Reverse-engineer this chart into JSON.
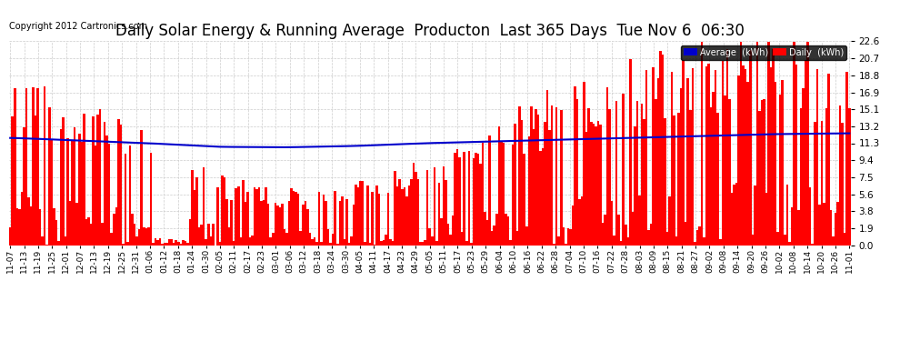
{
  "title": "Daily Solar Energy & Running Average  Producton  Last 365 Days  Tue Nov 6  06:30",
  "copyright": "Copyright 2012 Cartronics.com",
  "ylabel_right": [
    "22.6",
    "20.7",
    "18.8",
    "16.9",
    "15.1",
    "13.2",
    "11.3",
    "9.4",
    "7.5",
    "5.6",
    "3.8",
    "1.9",
    "0.0"
  ],
  "yticks": [
    22.6,
    20.7,
    18.8,
    16.9,
    15.1,
    13.2,
    11.3,
    9.4,
    7.5,
    5.6,
    3.8,
    1.9,
    0.0
  ],
  "bar_color": "#FF0000",
  "avg_line_color": "#0000CC",
  "background_color": "#FFFFFF",
  "grid_color": "#CCCCCC",
  "title_fontsize": 12,
  "xtick_labels": [
    "11-07",
    "11-13",
    "11-19",
    "11-25",
    "12-01",
    "12-07",
    "12-13",
    "12-19",
    "12-25",
    "12-31",
    "01-06",
    "01-12",
    "01-18",
    "01-24",
    "01-30",
    "02-05",
    "02-11",
    "02-17",
    "02-23",
    "03-01",
    "03-06",
    "03-12",
    "03-18",
    "03-24",
    "03-30",
    "04-05",
    "04-11",
    "04-17",
    "04-23",
    "04-29",
    "05-05",
    "05-11",
    "05-17",
    "05-23",
    "05-29",
    "06-04",
    "06-10",
    "06-16",
    "06-22",
    "06-28",
    "07-04",
    "07-10",
    "07-16",
    "07-22",
    "07-28",
    "08-03",
    "08-09",
    "08-15",
    "08-21",
    "08-27",
    "09-02",
    "09-08",
    "09-14",
    "09-20",
    "09-26",
    "10-02",
    "10-08",
    "10-14",
    "10-20",
    "10-26",
    "11-01"
  ],
  "avg_line_points_x": [
    0,
    30,
    60,
    90,
    120,
    150,
    180,
    210,
    240,
    270,
    300,
    330,
    364
  ],
  "avg_line_points_y": [
    11.9,
    11.6,
    11.3,
    10.9,
    10.85,
    11.0,
    11.3,
    11.5,
    11.7,
    11.9,
    12.1,
    12.3,
    12.4
  ]
}
